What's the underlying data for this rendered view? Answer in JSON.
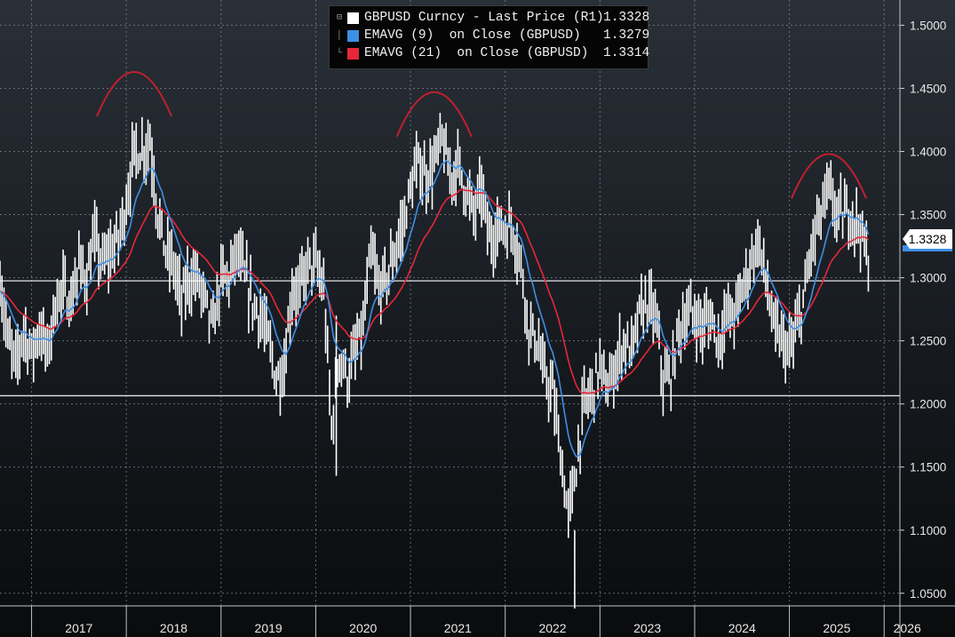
{
  "legend": {
    "rows": [
      {
        "label": "GBPUSD Curncy - Last Price (R1)",
        "value": "1.3328",
        "color": "#ffffff"
      },
      {
        "label": "EMAVG (9)  on Close (GBPUSD)",
        "value": "1.3279",
        "color": "#3d8fe6"
      },
      {
        "label": "EMAVG (21)  on Close (GBPUSD)",
        "value": "1.3314",
        "color": "#e8263a"
      }
    ]
  },
  "last_price_tag": "1.3328",
  "chart_data": {
    "type": "line",
    "x_range": [
      "2016-09",
      "2026-03"
    ],
    "ylim": [
      1.04,
      1.52
    ],
    "y_axis_side": "right",
    "y_ticks": [
      "1.5000",
      "1.4500",
      "1.4000",
      "1.3500",
      "1.3000",
      "1.2500",
      "1.2000",
      "1.1500",
      "1.1000",
      "1.0500"
    ],
    "x_ticks": [
      "2017",
      "2018",
      "2019",
      "2020",
      "2021",
      "2022",
      "2023",
      "2024",
      "2025",
      "2026"
    ],
    "horizontal_levels": [
      1.2975,
      1.2065
    ],
    "grid": true,
    "legend_position": "top-center",
    "series": [
      {
        "name": "GBPUSD Curncy - Last Price (R1)",
        "style": "high-low bars",
        "color": "#ffffff",
        "x": [
          "2016-09",
          "2016-10",
          "2016-11",
          "2016-12",
          "2017-01",
          "2017-02",
          "2017-03",
          "2017-04",
          "2017-05",
          "2017-06",
          "2017-07",
          "2017-08",
          "2017-09",
          "2017-10",
          "2017-11",
          "2017-12",
          "2018-01",
          "2018-02",
          "2018-03",
          "2018-04",
          "2018-05",
          "2018-06",
          "2018-07",
          "2018-08",
          "2018-09",
          "2018-10",
          "2018-11",
          "2018-12",
          "2019-01",
          "2019-02",
          "2019-03",
          "2019-04",
          "2019-05",
          "2019-06",
          "2019-07",
          "2019-08",
          "2019-09",
          "2019-10",
          "2019-11",
          "2019-12",
          "2020-01",
          "2020-02",
          "2020-03",
          "2020-04",
          "2020-05",
          "2020-06",
          "2020-07",
          "2020-08",
          "2020-09",
          "2020-10",
          "2020-11",
          "2020-12",
          "2021-01",
          "2021-02",
          "2021-03",
          "2021-04",
          "2021-05",
          "2021-06",
          "2021-07",
          "2021-08",
          "2021-09",
          "2021-10",
          "2021-11",
          "2021-12",
          "2022-01",
          "2022-02",
          "2022-03",
          "2022-04",
          "2022-05",
          "2022-06",
          "2022-07",
          "2022-08",
          "2022-09",
          "2022-10",
          "2022-11",
          "2022-12",
          "2023-01",
          "2023-02",
          "2023-03",
          "2023-04",
          "2023-05",
          "2023-06",
          "2023-07",
          "2023-08",
          "2023-09",
          "2023-10",
          "2023-11",
          "2023-12",
          "2024-01",
          "2024-02",
          "2024-03",
          "2024-04",
          "2024-05",
          "2024-06",
          "2024-07",
          "2024-08",
          "2024-09",
          "2024-10",
          "2024-11",
          "2024-12",
          "2025-01",
          "2025-02",
          "2025-03",
          "2025-04",
          "2025-05",
          "2025-06",
          "2025-07",
          "2025-08",
          "2025-09",
          "2025-10",
          "2025-11"
        ],
        "y": [
          1.3,
          1.25,
          1.23,
          1.26,
          1.24,
          1.26,
          1.24,
          1.28,
          1.29,
          1.28,
          1.31,
          1.3,
          1.33,
          1.31,
          1.32,
          1.33,
          1.36,
          1.4,
          1.4,
          1.41,
          1.35,
          1.32,
          1.31,
          1.28,
          1.3,
          1.3,
          1.28,
          1.26,
          1.3,
          1.3,
          1.32,
          1.3,
          1.28,
          1.27,
          1.25,
          1.22,
          1.23,
          1.29,
          1.29,
          1.31,
          1.31,
          1.29,
          1.18,
          1.24,
          1.22,
          1.24,
          1.26,
          1.32,
          1.29,
          1.3,
          1.32,
          1.34,
          1.37,
          1.39,
          1.38,
          1.39,
          1.41,
          1.38,
          1.39,
          1.37,
          1.35,
          1.37,
          1.33,
          1.34,
          1.34,
          1.34,
          1.31,
          1.26,
          1.25,
          1.22,
          1.21,
          1.16,
          1.11,
          1.15,
          1.2,
          1.21,
          1.23,
          1.21,
          1.23,
          1.25,
          1.24,
          1.27,
          1.28,
          1.27,
          1.22,
          1.22,
          1.26,
          1.27,
          1.27,
          1.26,
          1.27,
          1.25,
          1.27,
          1.27,
          1.29,
          1.31,
          1.33,
          1.3,
          1.26,
          1.25,
          1.24,
          1.26,
          1.29,
          1.33,
          1.35,
          1.37,
          1.35,
          1.35,
          1.35,
          1.34,
          1.31
        ]
      },
      {
        "name": "EMAVG (9)  on Close (GBPUSD)",
        "color": "#3d8fe6"
      },
      {
        "name": "EMAVG (21)  on Close (GBPUSD)",
        "color": "#e8263a"
      }
    ],
    "annotations": [
      {
        "type": "arc",
        "color": "#c0202e",
        "peak_date": "2018-02",
        "peak_value": 1.463
      },
      {
        "type": "arc",
        "color": "#c0202e",
        "peak_date": "2021-04",
        "peak_value": 1.447
      },
      {
        "type": "arc",
        "color": "#c0202e",
        "peak_date": "2025-06",
        "peak_value": 1.398
      }
    ]
  }
}
